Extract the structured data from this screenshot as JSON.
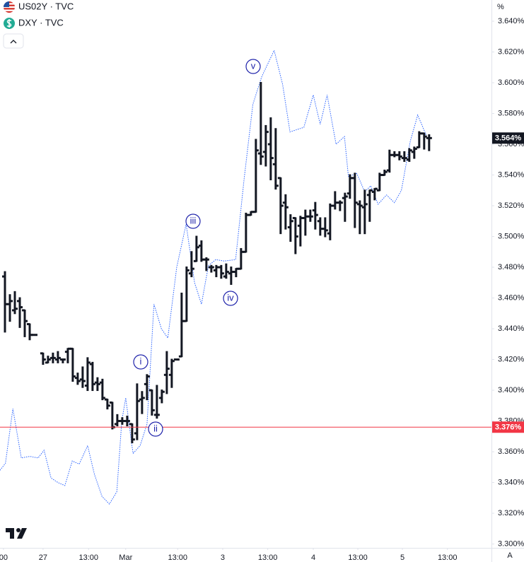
{
  "chart_data": {
    "type": "ohlc_overlay",
    "ylim": [
      3.2975,
      3.6538
    ],
    "y_unit": "%",
    "yticks": [
      {
        "value": 3.3,
        "label": "3.300%"
      },
      {
        "value": 3.32,
        "label": "3.320%"
      },
      {
        "value": 3.34,
        "label": "3.340%"
      },
      {
        "value": 3.36,
        "label": "3.360%"
      },
      {
        "value": 3.38,
        "label": "3.380%"
      },
      {
        "value": 3.4,
        "label": "3.400%"
      },
      {
        "value": 3.42,
        "label": "3.420%"
      },
      {
        "value": 3.44,
        "label": "3.440%"
      },
      {
        "value": 3.46,
        "label": "3.460%"
      },
      {
        "value": 3.48,
        "label": "3.480%"
      },
      {
        "value": 3.5,
        "label": "3.500%"
      },
      {
        "value": 3.52,
        "label": "3.520%"
      },
      {
        "value": 3.54,
        "label": "3.540%"
      },
      {
        "value": 3.56,
        "label": "3.560%"
      },
      {
        "value": 3.58,
        "label": "3.580%"
      },
      {
        "value": 3.6,
        "label": "3.600%"
      },
      {
        "value": 3.62,
        "label": "3.620%"
      },
      {
        "value": 3.64,
        "label": "3.640%"
      }
    ],
    "xlim": [
      0,
      99.3
    ],
    "xticks": [
      {
        "value": 0.7,
        "label": "00"
      },
      {
        "value": 8.7,
        "label": "27"
      },
      {
        "value": 17.9,
        "label": "13:00"
      },
      {
        "value": 25.4,
        "label": "Mar"
      },
      {
        "value": 35.9,
        "label": "13:00"
      },
      {
        "value": 45,
        "label": "3"
      },
      {
        "value": 54.1,
        "label": "13:00"
      },
      {
        "value": 63.3,
        "label": "4"
      },
      {
        "value": 72.3,
        "label": "13:00"
      },
      {
        "value": 81.3,
        "label": "5"
      },
      {
        "value": 90.4,
        "label": "13:00"
      }
    ],
    "grid": false,
    "auto_scale_button": "A",
    "series": [
      {
        "name": "US02Y · TVC",
        "kind": "ohlc",
        "color": "#131722",
        "x": [
          1,
          2,
          3,
          4,
          5,
          6,
          7,
          8.7,
          9.7,
          10.7,
          11.7,
          12.7,
          13.7,
          14.7,
          15.7,
          16.7,
          17.7,
          18.7,
          19.7,
          20.7,
          21.7,
          22.7,
          23.7,
          24.7,
          25.7,
          26.7,
          27.7,
          28.7,
          29.7,
          30.7,
          31.7,
          32.7,
          33.7,
          34.7,
          35.7,
          36.7,
          37.7,
          38.7,
          39.7,
          40.7,
          41.7,
          42.7,
          43.7,
          44.7,
          45.7,
          46.7,
          47.7,
          48.7,
          49.7,
          50.7,
          51.7,
          52.7,
          53.7,
          54.7,
          55.7,
          56.7,
          57.7,
          58.7,
          59.7,
          60.7,
          61.7,
          62.7,
          63.7,
          64.7,
          65.7,
          66.7,
          67.7,
          68.7,
          69.7,
          70.7,
          71.7,
          72.7,
          73.7,
          74.7,
          75.7,
          76.7,
          77.7,
          78.7,
          79.7,
          80.7,
          81.7,
          82.7,
          83.7,
          84.7,
          85.7,
          86.7
        ],
        "open": [
          3.474,
          3.456,
          3.452,
          3.458,
          3.452,
          3.443,
          3.436,
          3.424,
          3.418,
          3.421,
          3.42,
          3.42,
          3.425,
          3.427,
          3.408,
          3.407,
          3.403,
          3.417,
          3.405,
          3.405,
          3.394,
          3.392,
          3.378,
          3.38,
          3.38,
          3.378,
          3.372,
          3.394,
          3.404,
          3.4,
          3.384,
          3.395,
          3.41,
          3.41,
          3.42,
          3.422,
          3.445,
          3.476,
          3.484,
          3.494,
          3.485,
          3.48,
          3.478,
          3.48,
          3.474,
          3.476,
          3.477,
          3.479,
          3.49,
          3.514,
          3.516,
          3.554,
          3.555,
          3.56,
          3.547,
          3.538,
          3.522,
          3.506,
          3.512,
          3.507,
          3.512,
          3.513,
          3.517,
          3.51,
          3.505,
          3.502,
          3.52,
          3.522,
          3.525,
          3.528,
          3.538,
          3.521,
          3.519,
          3.527,
          3.529,
          3.53,
          3.54,
          3.543,
          3.553,
          3.553,
          3.551,
          3.55,
          3.555,
          3.558,
          3.567,
          3.564
        ],
        "high": [
          3.477,
          3.462,
          3.464,
          3.46,
          3.452,
          3.443,
          3.436,
          3.424,
          3.422,
          3.424,
          3.425,
          3.42,
          3.427,
          3.427,
          3.411,
          3.415,
          3.421,
          3.418,
          3.408,
          3.407,
          3.394,
          3.392,
          3.384,
          3.382,
          3.383,
          3.378,
          3.404,
          3.399,
          3.41,
          3.4,
          3.403,
          3.4,
          3.425,
          3.42,
          3.42,
          3.463,
          3.48,
          3.49,
          3.5,
          3.497,
          3.486,
          3.481,
          3.481,
          3.481,
          3.482,
          3.48,
          3.479,
          3.492,
          3.515,
          3.516,
          3.563,
          3.6,
          3.572,
          3.577,
          3.57,
          3.538,
          3.527,
          3.514,
          3.512,
          3.513,
          3.517,
          3.517,
          3.522,
          3.512,
          3.512,
          3.521,
          3.529,
          3.523,
          3.528,
          3.54,
          3.541,
          3.523,
          3.53,
          3.53,
          3.531,
          3.541,
          3.543,
          3.556,
          3.555,
          3.555,
          3.555,
          3.557,
          3.558,
          3.568,
          3.567,
          3.566
        ],
        "low": [
          3.438,
          3.445,
          3.45,
          3.441,
          3.435,
          3.433,
          3.436,
          3.417,
          3.418,
          3.418,
          3.418,
          3.418,
          3.418,
          3.406,
          3.404,
          3.402,
          3.4,
          3.4,
          3.4,
          3.394,
          3.388,
          3.375,
          3.377,
          3.378,
          3.377,
          3.366,
          3.368,
          3.385,
          3.394,
          3.384,
          3.382,
          3.392,
          3.398,
          3.402,
          3.42,
          3.422,
          3.445,
          3.474,
          3.484,
          3.484,
          3.478,
          3.477,
          3.474,
          3.473,
          3.473,
          3.469,
          3.474,
          3.479,
          3.49,
          3.514,
          3.516,
          3.547,
          3.546,
          3.537,
          3.531,
          3.502,
          3.505,
          3.497,
          3.489,
          3.494,
          3.501,
          3.51,
          3.505,
          3.501,
          3.5,
          3.498,
          3.518,
          3.517,
          3.51,
          3.525,
          3.506,
          3.502,
          3.502,
          3.51,
          3.524,
          3.53,
          3.54,
          3.542,
          3.552,
          3.55,
          3.549,
          3.549,
          3.551,
          3.558,
          3.557,
          3.556
        ],
        "close": [
          3.456,
          3.458,
          3.453,
          3.454,
          3.445,
          3.436,
          3.436,
          3.42,
          3.42,
          3.421,
          3.421,
          3.42,
          3.427,
          3.409,
          3.406,
          3.406,
          3.418,
          3.404,
          3.404,
          3.395,
          3.39,
          3.376,
          3.38,
          3.38,
          3.38,
          3.368,
          3.393,
          3.395,
          3.409,
          3.387,
          3.384,
          3.399,
          3.414,
          3.419,
          3.42,
          3.445,
          3.478,
          3.479,
          3.493,
          3.485,
          3.485,
          3.48,
          3.48,
          3.476,
          3.477,
          3.477,
          3.479,
          3.49,
          3.514,
          3.516,
          3.556,
          3.552,
          3.568,
          3.551,
          3.533,
          3.52,
          3.519,
          3.51,
          3.5,
          3.512,
          3.513,
          3.513,
          3.514,
          3.505,
          3.504,
          3.52,
          3.522,
          3.522,
          3.526,
          3.538,
          3.522,
          3.52,
          3.521,
          3.53,
          3.531,
          3.54,
          3.542,
          3.553,
          3.553,
          3.552,
          3.551,
          3.556,
          3.557,
          3.567,
          3.565,
          3.564
        ]
      },
      {
        "name": "DXY · TVC",
        "kind": "line",
        "color": "#2962ff",
        "x": [
          0,
          1.1,
          2.6,
          4.3,
          6,
          7.7,
          8.9,
          10.3,
          11.7,
          13.1,
          14.6,
          16,
          17.7,
          19.1,
          20.6,
          22.1,
          23.6,
          24.6,
          25.4,
          26.6,
          26.9,
          28.3,
          29.7,
          31.1,
          32.6,
          33.9,
          35.7,
          37.6,
          39.3,
          40.7,
          42.1,
          43.6,
          45.3,
          47.6,
          49.3,
          51.1,
          52.9,
          55.4,
          57.1,
          58.6,
          61.4,
          63.3,
          64.7,
          66.1,
          67.9,
          69.6,
          70.4,
          72.1,
          73.7,
          74.9,
          76.4,
          78.1,
          79.7,
          81.1,
          82.9,
          84.4,
          86.1
        ],
        "values": [
          3.348,
          3.3525,
          3.388,
          3.356,
          3.357,
          3.356,
          3.361,
          3.343,
          3.34,
          3.338,
          3.354,
          3.352,
          3.364,
          3.345,
          3.331,
          3.326,
          3.334,
          3.38,
          3.395,
          3.365,
          3.359,
          3.364,
          3.378,
          3.456,
          3.44,
          3.434,
          3.48,
          3.508,
          3.47,
          3.456,
          3.481,
          3.485,
          3.484,
          3.485,
          3.537,
          3.586,
          3.604,
          3.621,
          3.599,
          3.568,
          3.571,
          3.592,
          3.573,
          3.592,
          3.56,
          3.565,
          3.539,
          3.541,
          3.529,
          3.533,
          3.521,
          3.527,
          3.522,
          3.53,
          3.562,
          3.579,
          3.566
        ]
      }
    ],
    "price_lines": [
      {
        "value": 3.376,
        "label": "3.376%",
        "color": "#f23645",
        "line": true
      },
      {
        "value": 3.564,
        "label": "3.564%",
        "color": "#131722",
        "line": false
      }
    ],
    "annotations": [
      "v",
      "iii",
      "iv",
      "i",
      "ii"
    ]
  }
}
